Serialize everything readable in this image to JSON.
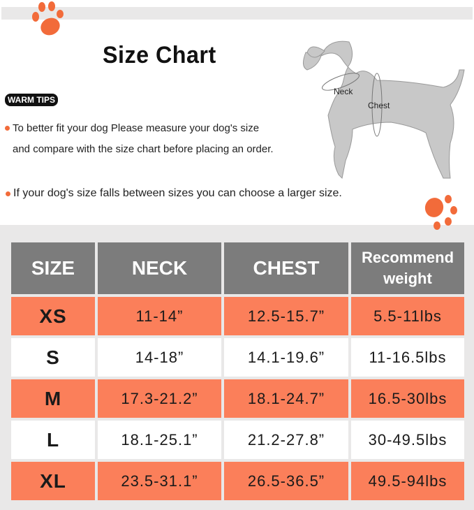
{
  "title": "Size Chart",
  "warm_tips_label": "WARM TIPS",
  "tips": [
    "To better fit your dog Please measure your dog's size",
    "and compare with the size chart before placing an order.",
    "If your dog's size falls between sizes you can choose a larger size."
  ],
  "diagram": {
    "neck_label": "Neck",
    "chest_label": "Chest"
  },
  "colors": {
    "accent": "#fb7f5a",
    "header": "#7c7c7c"
  },
  "table": {
    "headers": [
      "SIZE",
      "NECK",
      "CHEST",
      "Recommend weight"
    ],
    "rows": [
      [
        "XS",
        "11-14”",
        "12.5-15.7”",
        "5.5-11lbs"
      ],
      [
        "S",
        "14-18”",
        "14.1-19.6”",
        "11-16.5lbs"
      ],
      [
        "M",
        "17.3-21.2”",
        "18.1-24.7”",
        "16.5-30lbs"
      ],
      [
        "L",
        "18.1-25.1”",
        "21.2-27.8”",
        "30-49.5lbs"
      ],
      [
        "XL",
        "23.5-31.1”",
        "26.5-36.5”",
        "49.5-94lbs"
      ]
    ]
  }
}
